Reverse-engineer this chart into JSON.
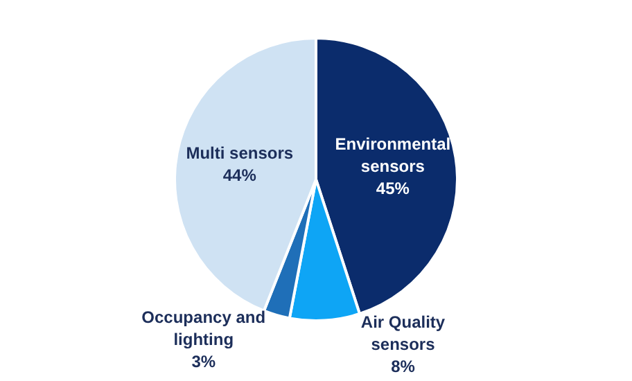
{
  "chart_data": {
    "type": "pie",
    "categories": [
      "Environmental sensors",
      "Air Quality sensors",
      "Occupancy and lighting",
      "Multi sensors"
    ],
    "values": [
      45,
      8,
      3,
      44
    ],
    "colors": [
      "#0b2c6c",
      "#0ea5f5",
      "#1f6fb8",
      "#cfe2f3"
    ],
    "value_labels": [
      "45%",
      "8%",
      "3%",
      "44%"
    ],
    "legend": false
  }
}
